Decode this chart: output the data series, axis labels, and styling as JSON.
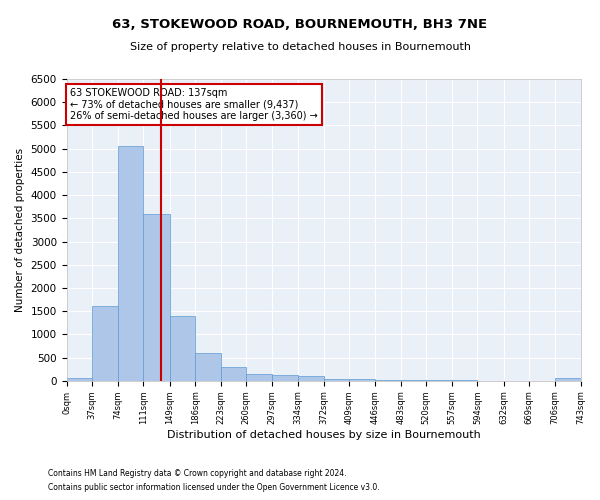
{
  "title": "63, STOKEWOOD ROAD, BOURNEMOUTH, BH3 7NE",
  "subtitle": "Size of property relative to detached houses in Bournemouth",
  "xlabel": "Distribution of detached houses by size in Bournemouth",
  "ylabel": "Number of detached properties",
  "bar_edges": [
    0,
    37,
    74,
    111,
    149,
    186,
    223,
    260,
    297,
    334,
    372,
    409,
    446,
    483,
    520,
    557,
    594,
    632,
    669,
    706,
    743
  ],
  "bar_heights": [
    60,
    1620,
    5060,
    3600,
    1390,
    590,
    290,
    150,
    130,
    95,
    50,
    40,
    20,
    15,
    10,
    8,
    5,
    4,
    3,
    55
  ],
  "bar_color": "#aec6e8",
  "bar_edge_color": "#5b9bd5",
  "property_size": 137,
  "vline_color": "#cc0000",
  "annotation_line1": "63 STOKEWOOD ROAD: 137sqm",
  "annotation_line2": "← 73% of detached houses are smaller (9,437)",
  "annotation_line3": "26% of semi-detached houses are larger (3,360) →",
  "annotation_box_color": "#cc0000",
  "ylim": [
    0,
    6500
  ],
  "yticks": [
    0,
    500,
    1000,
    1500,
    2000,
    2500,
    3000,
    3500,
    4000,
    4500,
    5000,
    5500,
    6000,
    6500
  ],
  "tick_labels": [
    "0sqm",
    "37sqm",
    "74sqm",
    "111sqm",
    "149sqm",
    "186sqm",
    "223sqm",
    "260sqm",
    "297sqm",
    "334sqm",
    "372sqm",
    "409sqm",
    "446sqm",
    "483sqm",
    "520sqm",
    "557sqm",
    "594sqm",
    "632sqm",
    "669sqm",
    "706sqm",
    "743sqm"
  ],
  "footer1": "Contains HM Land Registry data © Crown copyright and database right 2024.",
  "footer2": "Contains public sector information licensed under the Open Government Licence v3.0.",
  "bg_color": "#eaf0f8",
  "grid_color": "#ffffff"
}
